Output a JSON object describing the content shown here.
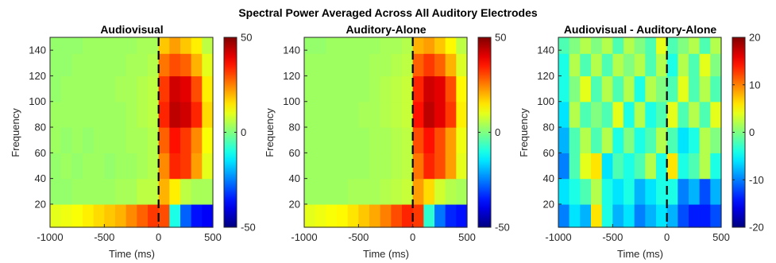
{
  "figure": {
    "suptitle": "Spectral Power Averaged Across All Auditory Electrodes"
  },
  "chart_data": [
    {
      "type": "heatmap",
      "title": "Audiovisual",
      "xlabel": "Time (ms)",
      "ylabel": "Frequency",
      "xlim": [
        -1000,
        500
      ],
      "ylim": [
        2,
        150
      ],
      "xticks": [
        -1000,
        -500,
        0,
        500
      ],
      "yticks": [
        20,
        40,
        60,
        80,
        100,
        120,
        140
      ],
      "colorbar": {
        "range": [
          -50,
          50
        ],
        "ticks": [
          -50,
          0,
          50
        ],
        "colormap": "jet"
      },
      "event_marker": {
        "x": 0,
        "style": "dashed",
        "color": "#000000"
      },
      "grid": {
        "x_centers": [
          -950,
          -850,
          -750,
          -650,
          -550,
          -450,
          -350,
          -250,
          -150,
          -50,
          50,
          150,
          250,
          350,
          450
        ],
        "y_centers": [
          10,
          30,
          50,
          70,
          90,
          110,
          130,
          145
        ],
        "values": [
          [
            10,
            11,
            12,
            14,
            16,
            18,
            20,
            24,
            28,
            32,
            30,
            -10,
            -28,
            -36,
            -38
          ],
          [
            2,
            2,
            3,
            3,
            3,
            3,
            4,
            4,
            6,
            6,
            20,
            14,
            6,
            4,
            4
          ],
          [
            2,
            3,
            2,
            3,
            3,
            2,
            3,
            3,
            4,
            5,
            24,
            34,
            32,
            22,
            10
          ],
          [
            3,
            2,
            3,
            2,
            3,
            3,
            3,
            4,
            4,
            5,
            28,
            36,
            32,
            24,
            12
          ],
          [
            3,
            3,
            3,
            3,
            3,
            3,
            3,
            4,
            5,
            6,
            34,
            44,
            42,
            34,
            16
          ],
          [
            2,
            3,
            3,
            3,
            3,
            3,
            4,
            4,
            5,
            6,
            32,
            42,
            40,
            30,
            14
          ],
          [
            2,
            2,
            3,
            3,
            3,
            3,
            3,
            4,
            4,
            5,
            26,
            30,
            28,
            20,
            10
          ],
          [
            2,
            2,
            2,
            3,
            3,
            3,
            3,
            3,
            4,
            4,
            18,
            22,
            18,
            14,
            6
          ]
        ]
      }
    },
    {
      "type": "heatmap",
      "title": "Auditory-Alone",
      "xlabel": "Time (ms)",
      "ylabel": "Frequency",
      "xlim": [
        -1000,
        500
      ],
      "ylim": [
        2,
        150
      ],
      "xticks": [
        -1000,
        -500,
        0,
        500
      ],
      "yticks": [
        20,
        40,
        60,
        80,
        100,
        120,
        140
      ],
      "colorbar": {
        "range": [
          -50,
          50
        ],
        "ticks": [
          -50,
          0,
          50
        ],
        "colormap": "jet"
      },
      "event_marker": {
        "x": 0,
        "style": "dashed",
        "color": "#000000"
      },
      "grid": {
        "x_centers": [
          -950,
          -850,
          -750,
          -650,
          -550,
          -450,
          -350,
          -250,
          -150,
          -50,
          50,
          150,
          250,
          350,
          450
        ],
        "y_centers": [
          10,
          30,
          50,
          70,
          90,
          110,
          130,
          145
        ],
        "values": [
          [
            10,
            11,
            12,
            13,
            15,
            18,
            21,
            25,
            30,
            34,
            32,
            -8,
            -26,
            -34,
            -36
          ],
          [
            3,
            3,
            3,
            3,
            4,
            4,
            4,
            5,
            6,
            7,
            22,
            16,
            8,
            5,
            4
          ],
          [
            3,
            3,
            3,
            3,
            3,
            3,
            4,
            4,
            5,
            6,
            26,
            34,
            30,
            22,
            10
          ],
          [
            3,
            3,
            3,
            3,
            3,
            3,
            4,
            4,
            5,
            6,
            30,
            36,
            30,
            22,
            11
          ],
          [
            3,
            3,
            3,
            3,
            3,
            4,
            4,
            5,
            6,
            7,
            36,
            44,
            40,
            32,
            14
          ],
          [
            3,
            3,
            3,
            3,
            3,
            3,
            4,
            5,
            6,
            7,
            34,
            42,
            40,
            30,
            13
          ],
          [
            3,
            3,
            3,
            3,
            3,
            3,
            4,
            4,
            5,
            6,
            28,
            32,
            28,
            20,
            9
          ],
          [
            2,
            2,
            3,
            3,
            3,
            3,
            3,
            4,
            4,
            5,
            20,
            22,
            18,
            13,
            6
          ]
        ]
      }
    },
    {
      "type": "heatmap",
      "title": "Audiovisual - Auditory-Alone",
      "xlabel": "Time (ms)",
      "ylabel": "Frequency",
      "xlim": [
        -1000,
        500
      ],
      "ylim": [
        2,
        150
      ],
      "xticks": [
        -1000,
        -500,
        0,
        500
      ],
      "yticks": [
        20,
        40,
        60,
        80,
        100,
        120,
        140
      ],
      "colorbar": {
        "range": [
          -20,
          20
        ],
        "ticks": [
          -20,
          -10,
          0,
          10,
          20
        ],
        "colormap": "jet"
      },
      "event_marker": {
        "x": 0,
        "style": "dashed",
        "color": "#000000"
      },
      "grid": {
        "x_centers": [
          -950,
          -850,
          -750,
          -650,
          -550,
          -450,
          -350,
          -250,
          -150,
          -50,
          50,
          150,
          250,
          350,
          450
        ],
        "y_centers": [
          10,
          30,
          50,
          70,
          90,
          110,
          130,
          145
        ],
        "values": [
          [
            -10,
            -6,
            -8,
            6,
            -4,
            -8,
            -6,
            -10,
            -8,
            -6,
            -8,
            -12,
            -14,
            -14,
            -12
          ],
          [
            -6,
            -4,
            -2,
            2,
            -4,
            -6,
            -4,
            -8,
            -6,
            -4,
            -4,
            -10,
            -8,
            -12,
            -8
          ],
          [
            -10,
            -2,
            4,
            6,
            -6,
            -2,
            -4,
            -2,
            2,
            -4,
            6,
            -4,
            -2,
            2,
            -4
          ],
          [
            -8,
            -2,
            2,
            -2,
            2,
            -4,
            0,
            -4,
            -2,
            2,
            -2,
            -6,
            -4,
            2,
            0
          ],
          [
            -6,
            2,
            -2,
            0,
            -2,
            4,
            -4,
            2,
            -4,
            -2,
            4,
            -2,
            2,
            -2,
            4
          ],
          [
            -4,
            0,
            4,
            -2,
            2,
            -2,
            2,
            -4,
            2,
            0,
            -2,
            4,
            -2,
            2,
            -2
          ],
          [
            -4,
            2,
            -2,
            2,
            -2,
            2,
            0,
            2,
            -2,
            2,
            -4,
            2,
            -2,
            4,
            0
          ],
          [
            -2,
            0,
            2,
            0,
            2,
            -2,
            2,
            0,
            -2,
            4,
            -2,
            0,
            2,
            -2,
            2
          ]
        ]
      }
    }
  ]
}
